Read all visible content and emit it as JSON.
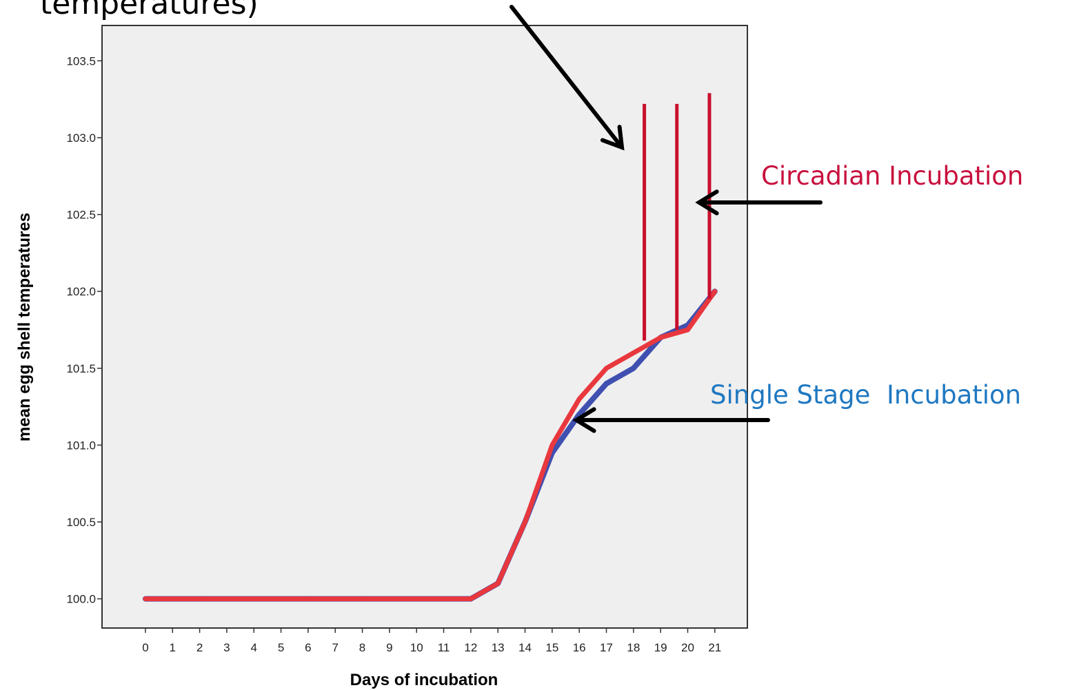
{
  "chart_data": {
    "type": "line",
    "xlabel": "Days of incubation",
    "ylabel": "mean egg shell temperatures",
    "x": [
      0,
      1,
      2,
      3,
      4,
      5,
      6,
      7,
      8,
      9,
      10,
      11,
      12,
      13,
      14,
      15,
      16,
      17,
      18,
      19,
      20,
      21
    ],
    "x_ticks": [
      "0",
      "1",
      "2",
      "3",
      "4",
      "5",
      "6",
      "7",
      "8",
      "9",
      "10",
      "11",
      "12",
      "13",
      "14",
      "15",
      "16",
      "17",
      "18",
      "19",
      "20",
      "21"
    ],
    "y_ticks": [
      "100.0",
      "100.5",
      "101.0",
      "101.5",
      "102.0",
      "102.5",
      "103.0",
      "103.5"
    ],
    "xlim": [
      -1.6,
      22.2
    ],
    "ylim": [
      99.81,
      103.73
    ],
    "grid": false,
    "series": [
      {
        "color": "#4050b0",
        "values": [
          100.0,
          100.0,
          100.0,
          100.0,
          100.0,
          100.0,
          100.0,
          100.0,
          100.0,
          100.0,
          100.0,
          100.0,
          100.0,
          100.1,
          100.5,
          100.95,
          101.2,
          101.4,
          101.5,
          101.7,
          101.78,
          102.0
        ]
      },
      {
        "color": "#e8383e",
        "values": [
          100.0,
          100.0,
          100.0,
          100.0,
          100.0,
          100.0,
          100.0,
          100.0,
          100.0,
          100.0,
          100.0,
          100.0,
          100.0,
          100.1,
          100.5,
          101.0,
          101.3,
          101.5,
          101.6,
          101.7,
          101.75,
          102.0
        ]
      }
    ],
    "vertical_markers": {
      "color": "#c8102e",
      "lines": [
        {
          "x": 18.4,
          "y_from": 101.68,
          "y_to": 103.22
        },
        {
          "x": 19.6,
          "y_from": 101.75,
          "y_to": 103.22
        },
        {
          "x": 20.8,
          "y_from": 101.95,
          "y_to": 103.29
        }
      ]
    },
    "annotations": [
      {
        "text": "Circadian Incubation",
        "color": "#c8103e"
      },
      {
        "text": "Single Stage  Incubation",
        "color": "#1f78c1"
      }
    ],
    "top_text_fragment": "temperatures)",
    "plot_background": "#efefef",
    "arrow_color": "#000000"
  }
}
